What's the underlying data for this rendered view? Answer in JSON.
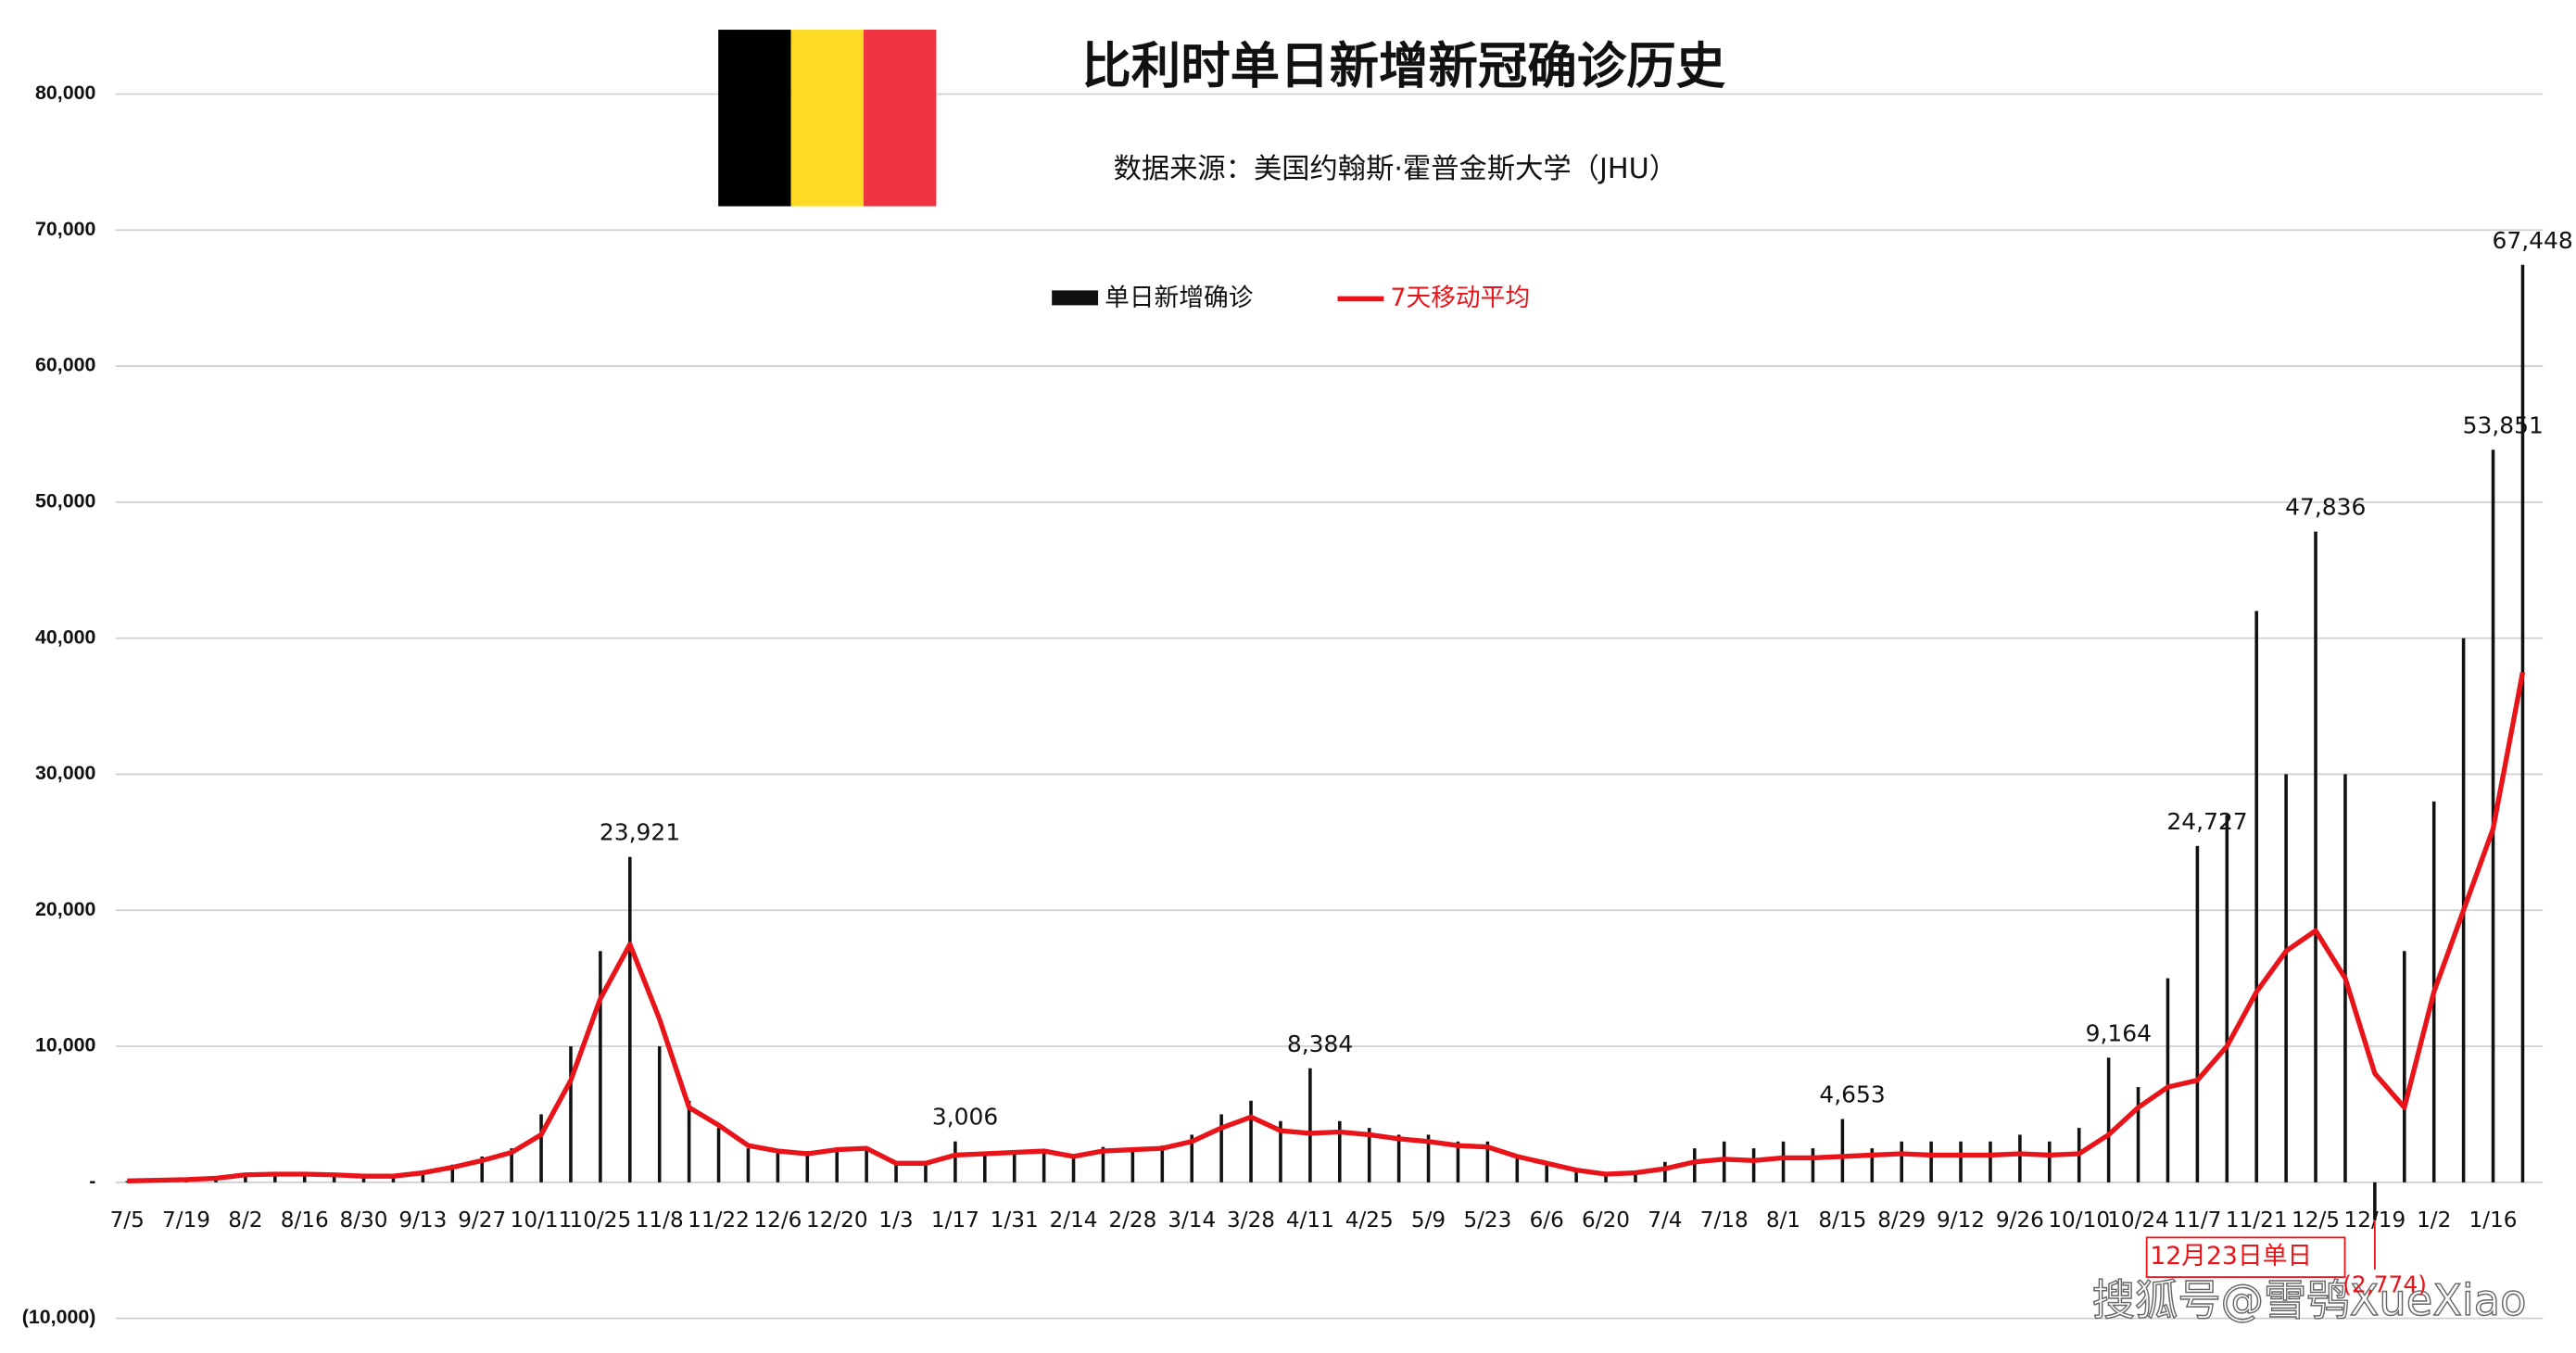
{
  "chart_data": {
    "type": "bar",
    "title": "比利时单日新增新冠确诊历史",
    "subtitle": "数据来源：美国约翰斯·霍普金斯大学（JHU）",
    "annotation": "12月23日单日",
    "watermark": "搜狐号@雪鸮XueXiao",
    "categories": [
      "7/5",
      null,
      "7/19",
      null,
      "8/2",
      null,
      "8/16",
      null,
      "8/30",
      null,
      "9/13",
      null,
      "9/27",
      null,
      "10/11",
      null,
      "10/25",
      null,
      "11/8",
      null,
      "11/22",
      null,
      "12/6",
      null,
      "12/20",
      null,
      "1/3",
      null,
      "1/17",
      null,
      "1/31",
      null,
      "2/14",
      null,
      "2/28",
      null,
      "3/14",
      null,
      "3/28",
      null,
      "4/11",
      null,
      "4/25",
      null,
      "5/9",
      null,
      "5/23",
      null,
      "6/6",
      null,
      "6/20",
      null,
      "7/4",
      null,
      "7/18",
      null,
      "8/1",
      null,
      "8/15",
      null,
      "8/29",
      null,
      "9/12",
      null,
      "9/26",
      null,
      "10/10",
      null,
      "10/24",
      null,
      "11/7",
      null,
      "11/21",
      null,
      "12/5",
      null,
      "12/19",
      null,
      "1/2",
      null,
      "1/16",
      null
    ],
    "series": [
      {
        "name": "单日新增确诊",
        "color": "#111111",
        "values": [
          100,
          150,
          200,
          350,
          600,
          650,
          600,
          550,
          450,
          500,
          800,
          1300,
          1900,
          2500,
          5000,
          10000,
          17000,
          23921,
          10000,
          6000,
          4000,
          2500,
          2300,
          2300,
          2500,
          2500,
          1500,
          1500,
          3006,
          2200,
          2200,
          2400,
          2000,
          2600,
          2500,
          2700,
          3500,
          5000,
          6000,
          4500,
          8384,
          4500,
          4000,
          3500,
          3500,
          3000,
          3000,
          2000,
          1500,
          1000,
          700,
          800,
          1500,
          2500,
          3000,
          2500,
          3000,
          2500,
          4653,
          2500,
          3000,
          3000,
          3000,
          3000,
          3500,
          3000,
          4000,
          9164,
          7000,
          15000,
          24727,
          27000,
          42000,
          30000,
          47836,
          30000,
          -2774,
          17000,
          28000,
          40000,
          53851,
          67448
        ],
        "value_labels": [
          null,
          null,
          null,
          null,
          null,
          null,
          null,
          null,
          null,
          null,
          null,
          null,
          null,
          null,
          null,
          null,
          null,
          "23,921",
          null,
          null,
          null,
          null,
          null,
          null,
          null,
          null,
          null,
          null,
          "3,006",
          null,
          null,
          null,
          null,
          null,
          null,
          null,
          null,
          null,
          null,
          null,
          "8,384",
          null,
          null,
          null,
          null,
          null,
          null,
          null,
          null,
          null,
          null,
          null,
          null,
          null,
          null,
          null,
          null,
          null,
          "4,653",
          null,
          null,
          null,
          null,
          null,
          null,
          null,
          null,
          "9,164",
          null,
          null,
          "24,727",
          null,
          null,
          null,
          "47,836",
          null,
          "(2,774)",
          null,
          null,
          null,
          "53,851",
          "67,448"
        ]
      },
      {
        "name": "7天移动平均",
        "color": "#e8141a",
        "values": [
          100,
          150,
          200,
          300,
          550,
          600,
          600,
          550,
          450,
          450,
          700,
          1100,
          1600,
          2200,
          3500,
          7500,
          13500,
          17500,
          12000,
          5500,
          4200,
          2700,
          2300,
          2100,
          2400,
          2500,
          1400,
          1400,
          2000,
          2100,
          2200,
          2300,
          1900,
          2300,
          2400,
          2500,
          3000,
          4000,
          4800,
          3800,
          3600,
          3700,
          3500,
          3200,
          3000,
          2700,
          2600,
          1900,
          1400,
          900,
          600,
          700,
          1000,
          1500,
          1700,
          1600,
          1800,
          1800,
          1900,
          2000,
          2100,
          2000,
          2000,
          2000,
          2100,
          2000,
          2100,
          3500,
          5500,
          7000,
          7500,
          10000,
          14000,
          17000,
          18500,
          15000,
          8000,
          5500,
          14000,
          20000,
          26000,
          37500
        ]
      }
    ],
    "ylim": [
      -10000,
      80000
    ],
    "yticks": [
      {
        "value": -10000,
        "label": "(10,000)"
      },
      {
        "value": 0,
        "label": "-"
      },
      {
        "value": 10000,
        "label": "10,000"
      },
      {
        "value": 20000,
        "label": "20,000"
      },
      {
        "value": 30000,
        "label": "30,000"
      },
      {
        "value": 40000,
        "label": "40,000"
      },
      {
        "value": 50000,
        "label": "50,000"
      },
      {
        "value": 60000,
        "label": "60,000"
      },
      {
        "value": 70000,
        "label": "70,000"
      },
      {
        "value": 80000,
        "label": "80,000"
      }
    ],
    "grid": true
  }
}
